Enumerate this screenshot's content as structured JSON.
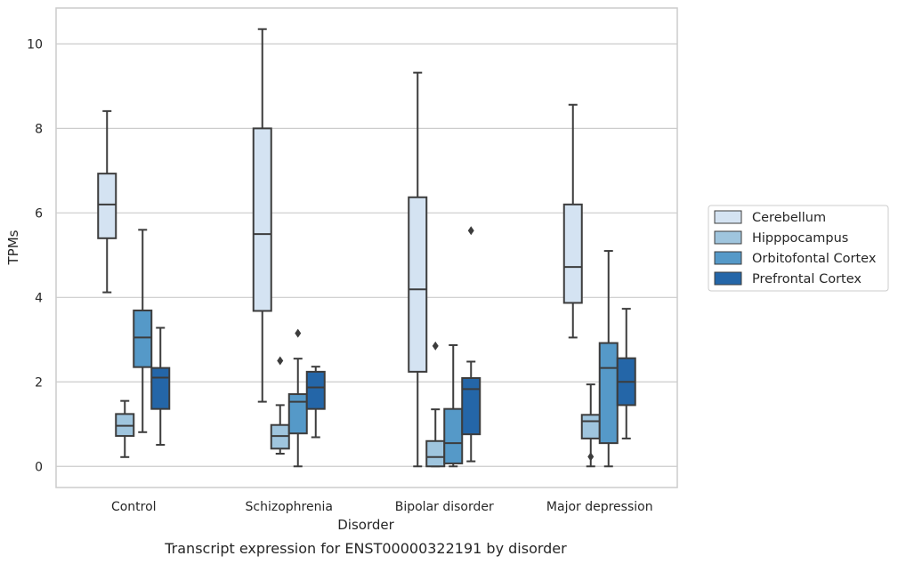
{
  "caption": "Transcript expression for ENST00000322191 by disorder",
  "chart_data": {
    "type": "box",
    "xlabel": "Disorder",
    "ylabel": "TPMs",
    "ylim": [
      -0.5,
      10.85
    ],
    "yticks": [
      0,
      2,
      4,
      6,
      8,
      10
    ],
    "categories": [
      "Control",
      "Schizophrenia",
      "Bipolar disorder",
      "Major depression"
    ],
    "grid": "horizontal",
    "legend_position": "right",
    "series": [
      {
        "name": "Cerebellum",
        "color": "#d4e3f2",
        "boxes": [
          {
            "whisker_low": 4.12,
            "q1": 5.4,
            "median": 6.2,
            "q3": 6.93,
            "whisker_high": 8.41,
            "outliers": []
          },
          {
            "whisker_low": 1.53,
            "q1": 3.68,
            "median": 5.5,
            "q3": 8.0,
            "whisker_high": 10.35,
            "outliers": []
          },
          {
            "whisker_low": 0.0,
            "q1": 2.24,
            "median": 4.19,
            "q3": 6.37,
            "whisker_high": 9.32,
            "outliers": []
          },
          {
            "whisker_low": 3.05,
            "q1": 3.87,
            "median": 4.72,
            "q3": 6.2,
            "whisker_high": 8.56,
            "outliers": []
          }
        ]
      },
      {
        "name": "Hipppocampus",
        "color": "#9fc5de",
        "boxes": [
          {
            "whisker_low": 0.22,
            "q1": 0.72,
            "median": 0.96,
            "q3": 1.24,
            "whisker_high": 1.55,
            "outliers": []
          },
          {
            "whisker_low": 0.3,
            "q1": 0.42,
            "median": 0.72,
            "q3": 0.98,
            "whisker_high": 1.45,
            "outliers": [
              2.5
            ]
          },
          {
            "whisker_low": 0.0,
            "q1": 0.0,
            "median": 0.22,
            "q3": 0.6,
            "whisker_high": 1.35,
            "outliers": [
              2.85
            ]
          },
          {
            "whisker_low": 0.0,
            "q1": 0.66,
            "median": 1.07,
            "q3": 1.22,
            "whisker_high": 1.94,
            "outliers": [
              0.23
            ]
          }
        ]
      },
      {
        "name": "Orbitofontal Cortex",
        "color": "#5599c8",
        "boxes": [
          {
            "whisker_low": 0.81,
            "q1": 2.35,
            "median": 3.05,
            "q3": 3.69,
            "whisker_high": 5.6,
            "outliers": []
          },
          {
            "whisker_low": 0.0,
            "q1": 0.78,
            "median": 1.53,
            "q3": 1.71,
            "whisker_high": 2.55,
            "outliers": [
              3.15
            ]
          },
          {
            "whisker_low": 0.0,
            "q1": 0.07,
            "median": 0.55,
            "q3": 1.36,
            "whisker_high": 2.87,
            "outliers": []
          },
          {
            "whisker_low": 0.0,
            "q1": 0.55,
            "median": 2.33,
            "q3": 2.92,
            "whisker_high": 5.1,
            "outliers": []
          }
        ]
      },
      {
        "name": "Prefrontal Cortex",
        "color": "#2466a8",
        "boxes": [
          {
            "whisker_low": 0.51,
            "q1": 1.36,
            "median": 2.1,
            "q3": 2.33,
            "whisker_high": 3.28,
            "outliers": []
          },
          {
            "whisker_low": 0.69,
            "q1": 1.36,
            "median": 1.87,
            "q3": 2.24,
            "whisker_high": 2.36,
            "outliers": []
          },
          {
            "whisker_low": 0.12,
            "q1": 0.76,
            "median": 1.83,
            "q3": 2.09,
            "whisker_high": 2.48,
            "outliers": [
              5.58
            ]
          },
          {
            "whisker_low": 0.66,
            "q1": 1.45,
            "median": 2.0,
            "q3": 2.56,
            "whisker_high": 3.73,
            "outliers": []
          }
        ]
      }
    ]
  }
}
